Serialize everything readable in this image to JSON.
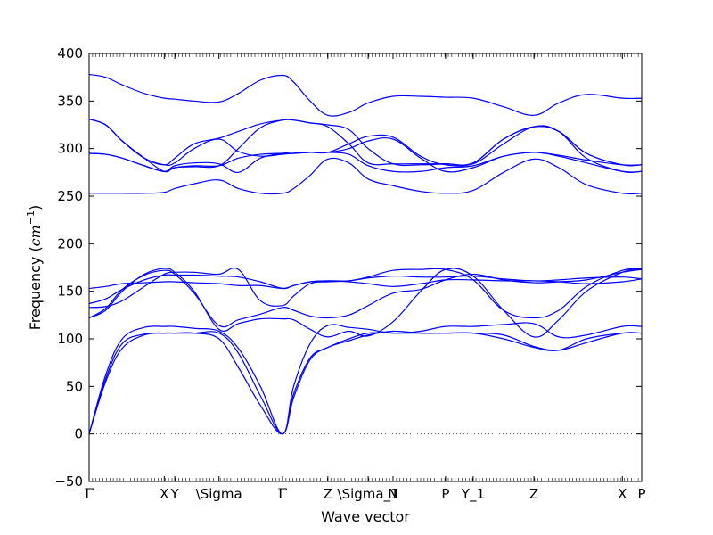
{
  "chart_data": {
    "type": "line",
    "title": "",
    "xlabel": "Wave vector",
    "ylabel": "Frequency (cm⁻¹)",
    "ylabel_parts": {
      "main": "Frequency (",
      "unit": "cm",
      "exp": "−1",
      "close": ")"
    },
    "ylim": [
      -50,
      400
    ],
    "yticks": [
      -50,
      0,
      50,
      100,
      150,
      200,
      250,
      300,
      350,
      400
    ],
    "xlim": [
      0,
      1
    ],
    "high_symmetry_points": [
      {
        "label": "Γ",
        "x": 0.0
      },
      {
        "label": "X",
        "x": 0.136
      },
      {
        "label": "Y",
        "x": 0.155
      },
      {
        "label": "\\Sigma",
        "x": 0.235
      },
      {
        "label": "Γ",
        "x": 0.35
      },
      {
        "label": "Z",
        "x": 0.432
      },
      {
        "label": "\\Sigma_1",
        "x": 0.505
      },
      {
        "label": "N",
        "x": 0.55
      },
      {
        "label": "P",
        "x": 0.645
      },
      {
        "label": "Y_1",
        "x": 0.695
      },
      {
        "label": "Z",
        "x": 0.805
      },
      {
        "label": "X",
        "x": 0.965
      },
      {
        "label": "P",
        "x": 1.0
      }
    ],
    "zero_line": true,
    "line_color": "#0000ff",
    "series": [
      {
        "x": [
          0,
          0.03,
          0.06,
          0.1,
          0.136,
          0.155,
          0.19,
          0.235,
          0.27,
          0.31,
          0.35,
          0.37,
          0.4,
          0.432,
          0.47,
          0.505,
          0.55,
          0.6,
          0.645,
          0.695,
          0.75,
          0.805,
          0.85,
          0.9,
          0.965,
          1.0
        ],
        "values": [
          0,
          55,
          90,
          104,
          106,
          106,
          106,
          100,
          70,
          30,
          0,
          38,
          78,
          91,
          98,
          104,
          108,
          106,
          106,
          106,
          100,
          91,
          88,
          100,
          106,
          106
        ]
      },
      {
        "x": [
          0,
          0.03,
          0.06,
          0.1,
          0.136,
          0.155,
          0.19,
          0.235,
          0.27,
          0.31,
          0.35,
          0.37,
          0.4,
          0.432,
          0.47,
          0.505,
          0.55,
          0.6,
          0.645,
          0.695,
          0.75,
          0.805,
          0.85,
          0.9,
          0.965,
          1.0
        ],
        "values": [
          0,
          58,
          95,
          105,
          106,
          106,
          106,
          106,
          85,
          40,
          0,
          42,
          80,
          91,
          100,
          106,
          106,
          106,
          106,
          106,
          104,
          92,
          88,
          96,
          106,
          106
        ]
      },
      {
        "x": [
          0,
          0.03,
          0.06,
          0.1,
          0.136,
          0.155,
          0.19,
          0.235,
          0.27,
          0.31,
          0.35,
          0.37,
          0.4,
          0.432,
          0.47,
          0.505,
          0.55,
          0.6,
          0.645,
          0.695,
          0.75,
          0.805,
          0.85,
          0.9,
          0.965,
          1.0
        ],
        "values": [
          0,
          62,
          100,
          112,
          113,
          113,
          111,
          108,
          90,
          50,
          0,
          50,
          95,
          114,
          112,
          110,
          106,
          108,
          113,
          113,
          115,
          116,
          102,
          104,
          113,
          113
        ]
      },
      {
        "x": [
          0,
          0.03,
          0.06,
          0.1,
          0.136,
          0.155,
          0.19,
          0.235,
          0.27,
          0.31,
          0.35,
          0.37,
          0.4,
          0.432,
          0.47,
          0.505,
          0.55,
          0.6,
          0.645,
          0.695,
          0.75,
          0.805,
          0.85,
          0.9,
          0.965,
          1.0
        ],
        "values": [
          122,
          130,
          150,
          168,
          174,
          170,
          150,
          110,
          116,
          121,
          121,
          120,
          110,
          102,
          108,
          103,
          118,
          150,
          173,
          166,
          130,
          102,
          120,
          150,
          170,
          174
        ]
      },
      {
        "x": [
          0,
          0.03,
          0.06,
          0.1,
          0.136,
          0.155,
          0.19,
          0.235,
          0.27,
          0.31,
          0.35,
          0.37,
          0.4,
          0.432,
          0.47,
          0.505,
          0.55,
          0.6,
          0.645,
          0.695,
          0.75,
          0.805,
          0.85,
          0.9,
          0.965,
          1.0
        ],
        "values": [
          122,
          132,
          152,
          167,
          172,
          168,
          148,
          114,
          120,
          126,
          133,
          130,
          124,
          122,
          125,
          135,
          148,
          152,
          162,
          168,
          162,
          159,
          160,
          162,
          170,
          173
        ]
      },
      {
        "x": [
          0,
          0.03,
          0.06,
          0.1,
          0.136,
          0.155,
          0.19,
          0.235,
          0.27,
          0.31,
          0.35,
          0.37,
          0.4,
          0.432,
          0.47,
          0.505,
          0.55,
          0.6,
          0.645,
          0.695,
          0.75,
          0.805,
          0.85,
          0.9,
          0.965,
          1.0
        ],
        "values": [
          133,
          134,
          140,
          155,
          168,
          170,
          170,
          168,
          173,
          140,
          135,
          145,
          158,
          160,
          161,
          165,
          172,
          173,
          173,
          162,
          130,
          122,
          130,
          155,
          172,
          173
        ]
      },
      {
        "x": [
          0,
          0.03,
          0.06,
          0.1,
          0.136,
          0.155,
          0.19,
          0.235,
          0.27,
          0.31,
          0.35,
          0.37,
          0.4,
          0.432,
          0.47,
          0.505,
          0.55,
          0.6,
          0.645,
          0.695,
          0.75,
          0.805,
          0.85,
          0.9,
          0.965,
          1.0
        ],
        "values": [
          137,
          142,
          152,
          162,
          167,
          167,
          167,
          166,
          165,
          160,
          153,
          156,
          160,
          161,
          161,
          164,
          166,
          165,
          165,
          166,
          163,
          161,
          162,
          164,
          165,
          163
        ]
      },
      {
        "x": [
          0,
          0.03,
          0.06,
          0.1,
          0.136,
          0.155,
          0.19,
          0.235,
          0.27,
          0.31,
          0.35,
          0.37,
          0.4,
          0.432,
          0.47,
          0.505,
          0.55,
          0.6,
          0.645,
          0.695,
          0.75,
          0.805,
          0.85,
          0.9,
          0.965,
          1.0
        ],
        "values": [
          153,
          155,
          158,
          159,
          160,
          160,
          159,
          158,
          156,
          156,
          153,
          156,
          160,
          161,
          160,
          158,
          155,
          158,
          162,
          162,
          161,
          161,
          160,
          158,
          160,
          163
        ]
      },
      {
        "x": [
          0,
          0.03,
          0.06,
          0.1,
          0.136,
          0.155,
          0.19,
          0.235,
          0.27,
          0.31,
          0.35,
          0.37,
          0.4,
          0.432,
          0.47,
          0.505,
          0.55,
          0.6,
          0.645,
          0.695,
          0.75,
          0.805,
          0.85,
          0.9,
          0.965,
          1.0
        ],
        "values": [
          253,
          253,
          253,
          253,
          254,
          258,
          263,
          267,
          258,
          253,
          253,
          258,
          272,
          289,
          285,
          268,
          261,
          255,
          253,
          256,
          275,
          289,
          280,
          262,
          253,
          253
        ]
      },
      {
        "x": [
          0,
          0.03,
          0.06,
          0.1,
          0.136,
          0.155,
          0.19,
          0.235,
          0.27,
          0.31,
          0.35,
          0.37,
          0.4,
          0.432,
          0.47,
          0.505,
          0.55,
          0.6,
          0.645,
          0.695,
          0.75,
          0.805,
          0.85,
          0.9,
          0.965,
          1.0
        ],
        "values": [
          295,
          294,
          290,
          282,
          276,
          280,
          282,
          282,
          290,
          294,
          295,
          295,
          296,
          296,
          294,
          282,
          276,
          276,
          280,
          282,
          292,
          296,
          292,
          285,
          276,
          276
        ]
      },
      {
        "x": [
          0,
          0.03,
          0.06,
          0.1,
          0.136,
          0.155,
          0.19,
          0.235,
          0.27,
          0.31,
          0.35,
          0.37,
          0.4,
          0.432,
          0.47,
          0.505,
          0.55,
          0.6,
          0.645,
          0.695,
          0.75,
          0.805,
          0.85,
          0.9,
          0.965,
          1.0
        ],
        "values": [
          295,
          294,
          290,
          282,
          276,
          282,
          285,
          284,
          275,
          290,
          295,
          295,
          296,
          296,
          300,
          308,
          310,
          290,
          276,
          280,
          292,
          296,
          293,
          288,
          283,
          283
        ]
      },
      {
        "x": [
          0,
          0.03,
          0.06,
          0.1,
          0.136,
          0.155,
          0.19,
          0.235,
          0.27,
          0.31,
          0.35,
          0.37,
          0.4,
          0.432,
          0.47,
          0.505,
          0.55,
          0.6,
          0.645,
          0.695,
          0.75,
          0.805,
          0.85,
          0.9,
          0.965,
          1.0
        ],
        "values": [
          331,
          325,
          308,
          290,
          283,
          285,
          300,
          310,
          297,
          292,
          294,
          295,
          296,
          296,
          305,
          313,
          312,
          292,
          283,
          285,
          310,
          323,
          318,
          295,
          283,
          283
        ]
      },
      {
        "x": [
          0,
          0.03,
          0.06,
          0.1,
          0.136,
          0.155,
          0.19,
          0.235,
          0.27,
          0.31,
          0.35,
          0.37,
          0.4,
          0.432,
          0.47,
          0.505,
          0.55,
          0.6,
          0.645,
          0.695,
          0.75,
          0.805,
          0.85,
          0.9,
          0.965,
          1.0
        ],
        "values": [
          331,
          325,
          308,
          290,
          283,
          290,
          305,
          311,
          318,
          326,
          330,
          330,
          327,
          325,
          320,
          300,
          284,
          283,
          284,
          285,
          310,
          323,
          318,
          295,
          283,
          283
        ]
      },
      {
        "x": [
          0,
          0.03,
          0.06,
          0.1,
          0.136,
          0.155,
          0.19,
          0.235,
          0.27,
          0.31,
          0.35,
          0.37,
          0.4,
          0.432,
          0.47,
          0.505,
          0.55,
          0.6,
          0.645,
          0.695,
          0.75,
          0.805,
          0.85,
          0.9,
          0.965,
          1.0
        ],
        "values": [
          331,
          325,
          308,
          290,
          276,
          280,
          281,
          282,
          300,
          322,
          330,
          330,
          327,
          323,
          305,
          285,
          284,
          284,
          284,
          284,
          305,
          323,
          318,
          290,
          276,
          276
        ]
      },
      {
        "x": [
          0,
          0.03,
          0.06,
          0.1,
          0.136,
          0.155,
          0.19,
          0.235,
          0.27,
          0.31,
          0.35,
          0.37,
          0.4,
          0.432,
          0.47,
          0.505,
          0.55,
          0.6,
          0.645,
          0.695,
          0.75,
          0.805,
          0.85,
          0.9,
          0.965,
          1.0
        ],
        "values": [
          378,
          375,
          367,
          358,
          353,
          352,
          350,
          349,
          358,
          372,
          377,
          370,
          350,
          335,
          338,
          348,
          355,
          355,
          354,
          353,
          344,
          335,
          348,
          357,
          353,
          353
        ]
      }
    ]
  }
}
